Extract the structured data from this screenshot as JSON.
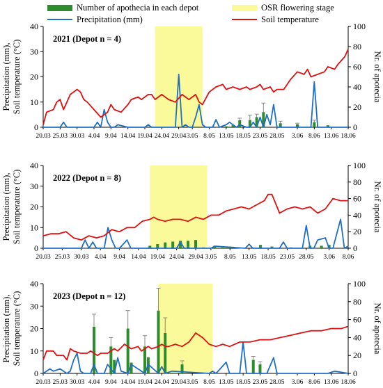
{
  "legend": {
    "apothecia": "Number of apothecia in each depot",
    "flowering": "OSR flowering stage",
    "precipitation": "Precipitation  (mm)",
    "soil": "Soil temperature"
  },
  "colors": {
    "precipitation": "#1f6fc5",
    "soil": "#e01010",
    "apothecia": "#2e8b2e",
    "flowering": "#fafa9a",
    "errorbar": "#888888"
  },
  "chart_data": [
    {
      "type": "line",
      "title": "2021 (Depot n = 4)",
      "ylabel": "Precipitation (mm), Soil temperature (°C)",
      "y2label": "Nr. of apotecia",
      "ylim": [
        0,
        40
      ],
      "y2lim": [
        0,
        100
      ],
      "yticks": [
        0,
        10,
        20,
        30,
        40
      ],
      "y2ticks": [
        0,
        20,
        40,
        60,
        80,
        100
      ],
      "x_start": "20.03",
      "x_end": "18.06",
      "xtick_labels": [
        "20.03",
        "25.03",
        "30.03",
        "4.04",
        "9.04",
        "14.04",
        "19.04",
        "24.04",
        "29.04",
        "3.05",
        "8.05",
        "13.05",
        "18.05",
        "23.05",
        "28.05",
        "3.06",
        "8.06",
        "13.06",
        "18.06"
      ],
      "flowering": [
        "22.04",
        "6.05"
      ],
      "soil_temperature": {
        "x": [
          "20.03",
          "21.03",
          "23.03",
          "24.03",
          "25.03",
          "26.03",
          "27.03",
          "28.03",
          "30.03",
          "31.03",
          "1.04",
          "2.04",
          "4.04",
          "6.04",
          "7.04",
          "8.04",
          "9.04",
          "10.04",
          "12.04",
          "14.04",
          "15.04",
          "17.04",
          "18.04",
          "19.04",
          "20.04",
          "21.04",
          "22.04",
          "24.04",
          "26.04",
          "28.04",
          "30.04",
          "2.05",
          "4.05",
          "5.05",
          "6.05",
          "8.05",
          "10.05",
          "12.05",
          "13.05",
          "15.05",
          "17.05",
          "19.05",
          "20.05",
          "22.05",
          "23.05",
          "24.05",
          "26.05",
          "27.05",
          "28.05",
          "30.05",
          "31.05",
          "1.06",
          "3.06",
          "5.06",
          "6.06",
          "7.06",
          "9.06",
          "11.06",
          "12.06",
          "14.06",
          "15.06",
          "17.06",
          "18.06"
        ],
        "y": [
          1,
          6,
          7,
          10,
          11,
          7,
          10,
          13,
          15,
          14,
          11,
          10,
          7,
          4,
          5,
          6,
          9,
          7,
          6,
          9,
          11,
          12,
          11,
          12,
          13,
          13,
          11,
          13,
          11,
          10,
          13,
          11,
          13,
          10,
          9,
          14,
          16,
          17,
          15,
          16,
          15,
          16,
          15,
          16,
          17,
          15,
          16,
          14,
          15,
          15,
          17,
          19,
          22,
          21,
          23,
          20,
          21,
          22,
          24,
          23,
          25,
          28,
          31
        ]
      },
      "precipitation": {
        "x": [
          "20.03",
          "25.03",
          "26.03",
          "27.03",
          "28.03",
          "4.04",
          "5.04",
          "6.04",
          "7.04",
          "8.04",
          "9.04",
          "10.04",
          "11.04",
          "14.04",
          "15.04",
          "19.04",
          "20.04",
          "21.04",
          "28.04",
          "29.04",
          "30.04",
          "1.05",
          "2.05",
          "3.05",
          "4.05",
          "5.05",
          "6.05",
          "7.05",
          "9.05",
          "10.05",
          "11.05",
          "13.05",
          "14.05",
          "16.05",
          "17.05",
          "19.05",
          "20.05",
          "21.05",
          "22.05",
          "23.05",
          "24.05",
          "25.05",
          "26.05",
          "27.05",
          "28.05",
          "29.05",
          "31.05",
          "3.06",
          "6.06",
          "7.06",
          "8.06",
          "9.06",
          "10.06",
          "13.06",
          "18.06"
        ],
        "y": [
          0,
          0,
          2,
          0,
          0,
          0,
          2,
          0,
          7,
          2,
          0,
          0,
          1,
          0,
          0,
          0,
          1,
          0,
          0,
          21,
          0,
          1,
          0,
          0,
          4,
          9,
          1,
          0,
          0,
          3,
          0,
          1,
          2,
          0,
          1,
          0,
          0,
          2,
          0,
          4,
          0,
          5,
          1,
          9,
          0,
          0,
          0,
          0,
          0,
          0,
          18,
          0,
          0,
          0,
          0
        ]
      },
      "apothecia": [
        {
          "x": "13.05",
          "value": 1
        },
        {
          "x": "15.05",
          "value": 2
        },
        {
          "x": "17.05",
          "value": 7,
          "err": 2
        },
        {
          "x": "20.05",
          "value": 7,
          "err": 5
        },
        {
          "x": "22.05",
          "value": 10,
          "err": 3
        },
        {
          "x": "24.05",
          "value": 15,
          "err": 9
        },
        {
          "x": "29.05",
          "value": 4,
          "err": 2
        },
        {
          "x": "3.06",
          "value": 3,
          "err": 1
        },
        {
          "x": "8.06",
          "value": 5,
          "err": 2
        },
        {
          "x": "12.06",
          "value": 2
        }
      ]
    },
    {
      "type": "line",
      "title": "2022 (Depot n = 8)",
      "ylabel": "Precipitation (mm), Soil temperature (°C)",
      "y2label": "Nr. of apotecia",
      "ylim": [
        0,
        40
      ],
      "y2lim": [
        0,
        100
      ],
      "yticks": [
        0,
        10,
        20,
        30,
        40
      ],
      "y2ticks": [
        0,
        20,
        40,
        60,
        80,
        100
      ],
      "x_start": "20.03",
      "x_end": "8.06",
      "xtick_labels": [
        "20.03",
        "25.03",
        "30.03",
        "4.04",
        "9.04",
        "14.04",
        "19.04",
        "24.04",
        "29.04",
        "3.05",
        "8.05",
        "13.05",
        "18.05",
        "23.05",
        "28.05",
        "3.06",
        "8.06"
      ],
      "flowering": [
        "17.04",
        "2.05"
      ],
      "soil_temperature": {
        "x": [
          "20.03",
          "22.03",
          "24.03",
          "26.03",
          "28.03",
          "30.03",
          "1.04",
          "3.04",
          "5.04",
          "7.04",
          "9.04",
          "11.04",
          "13.04",
          "15.04",
          "17.04",
          "18.04",
          "19.04",
          "21.04",
          "23.04",
          "25.04",
          "27.04",
          "29.04",
          "1.05",
          "3.05",
          "5.05",
          "7.05",
          "9.05",
          "11.05",
          "13.05",
          "15.05",
          "17.05",
          "18.05",
          "19.05",
          "21.05",
          "23.05",
          "25.05",
          "27.05",
          "29.05",
          "31.05",
          "2.06",
          "4.06",
          "6.06",
          "8.06"
        ],
        "y": [
          6,
          7,
          7,
          8,
          5,
          4,
          6,
          5,
          6,
          9,
          8,
          10,
          10,
          13,
          14,
          15,
          14,
          13,
          14,
          14,
          13,
          15,
          14,
          16,
          16,
          18,
          19,
          20,
          19,
          21,
          23,
          26,
          26,
          17,
          19,
          20,
          19,
          20,
          17,
          19,
          24,
          23,
          23
        ]
      },
      "precipitation": {
        "x": [
          "20.03",
          "30.03",
          "31.03",
          "1.04",
          "2.04",
          "3.04",
          "4.04",
          "5.04",
          "6.04",
          "7.04",
          "8.04",
          "9.04",
          "10.04",
          "11.04",
          "12.04",
          "15.04",
          "24.04",
          "25.04",
          "26.04",
          "3.05",
          "4.05",
          "12.05",
          "13.05",
          "14.05",
          "21.05",
          "22.05",
          "23.05",
          "24.05",
          "25.05",
          "27.05",
          "28.05",
          "29.05",
          "30.05",
          "31.05",
          "2.06",
          "3.06",
          "4.06",
          "6.06",
          "7.06",
          "8.06"
        ],
        "y": [
          0,
          0,
          4,
          0,
          3,
          0,
          0,
          0,
          10,
          4,
          0,
          0,
          2,
          4,
          0,
          0,
          0,
          3,
          0,
          0,
          1,
          0,
          2,
          0,
          0,
          3,
          0,
          0,
          0,
          0,
          11,
          0,
          0,
          4,
          5,
          0,
          0,
          14,
          0,
          1
        ]
      },
      "apothecia": [
        {
          "x": "17.04",
          "value": 3
        },
        {
          "x": "19.04",
          "value": 5
        },
        {
          "x": "21.04",
          "value": 7
        },
        {
          "x": "23.04",
          "value": 8
        },
        {
          "x": "25.04",
          "value": 9
        },
        {
          "x": "27.04",
          "value": 9
        },
        {
          "x": "29.04",
          "value": 10
        },
        {
          "x": "1.05",
          "value": 1
        },
        {
          "x": "4.05",
          "value": 3
        },
        {
          "x": "6.05",
          "value": 1
        },
        {
          "x": "8.05",
          "value": 2
        },
        {
          "x": "10.05",
          "value": 1
        },
        {
          "x": "16.05",
          "value": 4
        },
        {
          "x": "19.05",
          "value": 2
        },
        {
          "x": "24.05",
          "value": 1
        },
        {
          "x": "29.05",
          "value": 3
        },
        {
          "x": "1.06",
          "value": 3
        },
        {
          "x": "3.06",
          "value": 4
        }
      ]
    },
    {
      "type": "line",
      "title": "2023 (Depot n = 12)",
      "ylabel": "Precipitation (mm), Soil temperature (°C)",
      "y2label": "Nr. of apotecia",
      "ylim": [
        0,
        40
      ],
      "y2lim": [
        0,
        100
      ],
      "yticks": [
        0,
        10,
        20,
        30,
        40
      ],
      "y2ticks": [
        0,
        20,
        40,
        60,
        80,
        100
      ],
      "x_start": "20.03",
      "x_end": "18.06",
      "xtick_labels": [
        "20.03",
        "25.03",
        "30.03",
        "4.04",
        "9.04",
        "14.04",
        "19.04",
        "24.04",
        "29.04",
        "3.05",
        "8.05",
        "13.05",
        "18.05",
        "23.05",
        "28.05",
        "3.06",
        "8.06",
        "13.06",
        "18.06"
      ],
      "flowering": [
        "23.04",
        "9.05"
      ],
      "soil_temperature": {
        "x": [
          "20.03",
          "21.03",
          "23.03",
          "24.03",
          "26.03",
          "27.03",
          "28.03",
          "29.03",
          "31.03",
          "2.04",
          "3.04",
          "5.04",
          "6.04",
          "8.04",
          "10.04",
          "11.04",
          "13.04",
          "15.04",
          "17.04",
          "18.04",
          "20.04",
          "21.04",
          "23.04",
          "24.04",
          "25.04",
          "26.04",
          "28.04",
          "30.04",
          "2.05",
          "4.05",
          "6.05",
          "8.05",
          "10.05",
          "12.05",
          "14.05",
          "17.05",
          "20.05",
          "23.05",
          "26.05",
          "29.05",
          "1.06",
          "4.06",
          "7.06",
          "10.06",
          "13.06",
          "16.06",
          "18.06"
        ],
        "y": [
          6,
          10,
          10,
          8,
          8,
          6,
          11,
          10,
          9,
          9,
          10,
          8,
          9,
          9,
          11,
          10,
          13,
          11,
          12,
          10,
          12,
          11,
          12,
          13,
          12,
          12,
          13,
          12,
          14,
          18,
          16,
          13,
          12,
          13,
          12,
          14,
          14,
          15,
          15,
          16,
          17,
          18,
          19,
          19,
          20,
          20,
          21
        ]
      },
      "precipitation": {
        "x": [
          "20.03",
          "22.03",
          "23.03",
          "25.03",
          "27.03",
          "28.03",
          "29.03",
          "30.03",
          "31.03",
          "1.04",
          "3.04",
          "4.04",
          "5.04",
          "7.04",
          "8.04",
          "10.04",
          "11.04",
          "12.04",
          "14.04",
          "15.04",
          "19.04",
          "20.04",
          "23.04",
          "24.04",
          "25.04",
          "27.04",
          "8.05",
          "9.05",
          "10.05",
          "13.05",
          "14.05",
          "15.05",
          "17.05",
          "18.05",
          "19.05",
          "20.05",
          "25.05",
          "27.05",
          "28.05",
          "29.05",
          "12.06",
          "14.06",
          "18.06"
        ],
        "y": [
          0,
          2,
          1,
          2,
          0,
          1,
          6,
          9,
          1,
          0,
          0,
          4,
          0,
          0,
          4,
          0,
          7,
          1,
          0,
          4,
          0,
          4,
          0,
          3,
          0,
          1,
          0,
          1,
          0,
          5,
          0,
          0,
          0,
          14,
          0,
          0,
          0,
          7,
          0,
          0,
          0,
          1,
          0
        ]
      },
      "apothecia": [
        {
          "x": "4.04",
          "value": 52,
          "err": 14
        },
        {
          "x": "9.04",
          "value": 30,
          "err": 10
        },
        {
          "x": "10.04",
          "value": 15
        },
        {
          "x": "14.04",
          "value": 50,
          "err": 20
        },
        {
          "x": "15.04",
          "value": 12
        },
        {
          "x": "19.04",
          "value": 30,
          "err": 12
        },
        {
          "x": "20.04",
          "value": 18
        },
        {
          "x": "23.04",
          "value": 70,
          "err": 25
        },
        {
          "x": "25.04",
          "value": 45,
          "err": 17
        },
        {
          "x": "30.04",
          "value": 10,
          "err": 4
        },
        {
          "x": "21.05",
          "value": 15,
          "err": 4
        },
        {
          "x": "23.05",
          "value": 10,
          "err": 3
        }
      ]
    }
  ]
}
